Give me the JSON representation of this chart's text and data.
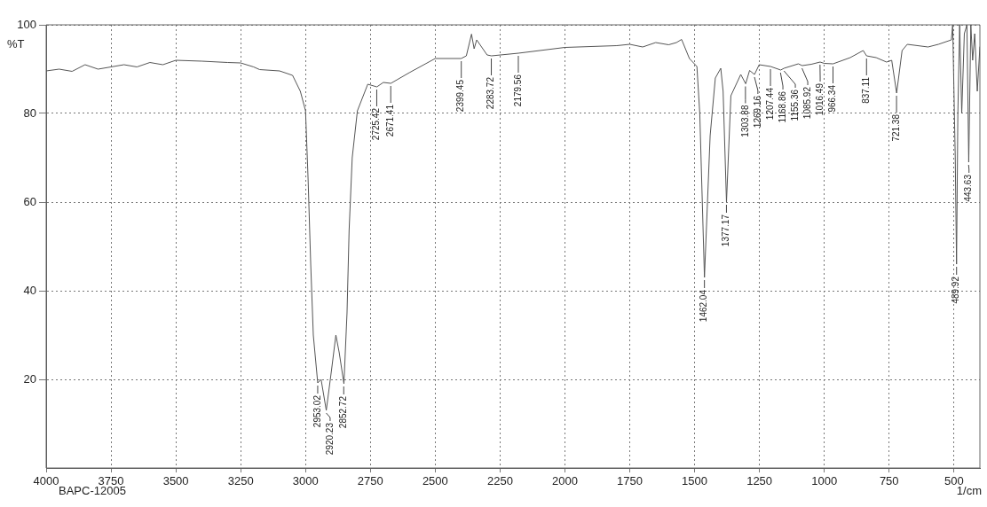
{
  "chart_data": {
    "type": "line",
    "xlabel": "1/cm",
    "ylabel": "%T",
    "xlim": [
      4000,
      400
    ],
    "xticks": [
      4000,
      3750,
      3500,
      3250,
      3000,
      2750,
      2500,
      2250,
      2000,
      1750,
      1500,
      1250,
      1000,
      750,
      500
    ],
    "ylim": [
      0,
      100
    ],
    "yticks": [
      20,
      40,
      60,
      80,
      100
    ],
    "grid": true,
    "legend": false,
    "marker": "none",
    "line_style": "solid",
    "series": [
      {
        "color": "#555555",
        "x": [
          4000,
          3950,
          3900,
          3850,
          3800,
          3750,
          3700,
          3650,
          3600,
          3550,
          3500,
          3400,
          3300,
          3250,
          3200,
          3177,
          3100,
          3050,
          3020,
          3000,
          2990,
          2980,
          2970,
          2953,
          2940,
          2920,
          2900,
          2883,
          2870,
          2852,
          2840,
          2832,
          2820,
          2800,
          2760,
          2725,
          2700,
          2671,
          2600,
          2500,
          2400,
          2380,
          2360,
          2350,
          2340,
          2300,
          2283,
          2179,
          2000,
          1800,
          1750,
          1700,
          1650,
          1600,
          1570,
          1550,
          1520,
          1491,
          1480,
          1462,
          1440,
          1420,
          1399,
          1390,
          1377,
          1360,
          1322,
          1303,
          1288,
          1269,
          1251,
          1207,
          1168,
          1155,
          1100,
          1085,
          1050,
          1016,
          1000,
          966,
          900,
          850,
          837,
          800,
          760,
          740,
          721,
          700,
          680,
          600,
          560,
          510,
          505,
          495,
          490,
          485,
          478,
          470,
          460,
          450,
          443,
          435,
          428,
          420,
          410,
          400
        ],
        "values": [
          89.6,
          90,
          89.5,
          91,
          90,
          90.5,
          91,
          90.5,
          91.5,
          91,
          92,
          91.8,
          91.5,
          91.4,
          90.5,
          89.9,
          89.6,
          88.6,
          85,
          80.6,
          65,
          46,
          30,
          19.2,
          20,
          13,
          22,
          30,
          26,
          19,
          35,
          53.6,
          70,
          80.6,
          86.6,
          86,
          87,
          86.8,
          89.2,
          92.4,
          92.4,
          93,
          97.9,
          94.6,
          96.6,
          93.2,
          93,
          93.6,
          94.9,
          95.3,
          95.6,
          95,
          96,
          95.5,
          96,
          96.7,
          92.4,
          90.6,
          80,
          43,
          75,
          88,
          90.2,
          85,
          60,
          84,
          88.8,
          86.7,
          89.7,
          88.8,
          91,
          90.6,
          89.8,
          90.2,
          91.2,
          90.8,
          91.1,
          91.6,
          91.3,
          91.2,
          92.6,
          94.2,
          93,
          92.6,
          91.6,
          92,
          84.6,
          94.2,
          95.6,
          95,
          95.6,
          96.6,
          100,
          70,
          46,
          80,
          100,
          80,
          98,
          100,
          69,
          100,
          92,
          98,
          85,
          95
        ]
      }
    ],
    "annotations": [
      "BAPC-12005",
      {
        "text": "2953.02",
        "x": 2953.02,
        "y": 19.2
      },
      {
        "text": "2920.23",
        "x": 2920.23,
        "y": 13
      },
      {
        "text": "2852.72",
        "x": 2852.72,
        "y": 19
      },
      {
        "text": "2725.42",
        "x": 2725.42,
        "y": 86
      },
      {
        "text": "2671.41",
        "x": 2671.41,
        "y": 86.8
      },
      {
        "text": "2399.45",
        "x": 2399.45,
        "y": 92.4
      },
      {
        "text": "2283.72",
        "x": 2283.72,
        "y": 93
      },
      {
        "text": "2179.56",
        "x": 2179.56,
        "y": 93.6
      },
      {
        "text": "1462.04",
        "x": 1462.04,
        "y": 43
      },
      {
        "text": "1377.17",
        "x": 1377.17,
        "y": 60
      },
      {
        "text": "1303.88",
        "x": 1303.88,
        "y": 86.7
      },
      {
        "text": "1269.16",
        "x": 1269.16,
        "y": 88.8
      },
      {
        "text": "1207.44",
        "x": 1207.44,
        "y": 90.6
      },
      {
        "text": "1168.86",
        "x": 1168.86,
        "y": 89.8
      },
      {
        "text": "1155.36",
        "x": 1155.36,
        "y": 90.2
      },
      {
        "text": "1085.92",
        "x": 1085.92,
        "y": 90.8
      },
      {
        "text": "1016.49",
        "x": 1016.49,
        "y": 91.6
      },
      {
        "text": "966.34",
        "x": 966.34,
        "y": 91.2
      },
      {
        "text": "837.11",
        "x": 837.11,
        "y": 93
      },
      {
        "text": "721.38",
        "x": 721.38,
        "y": 84.6
      },
      {
        "text": "489.92",
        "x": 489.92,
        "y": 46
      },
      {
        "text": "443.63",
        "x": 443.63,
        "y": 69
      }
    ]
  }
}
